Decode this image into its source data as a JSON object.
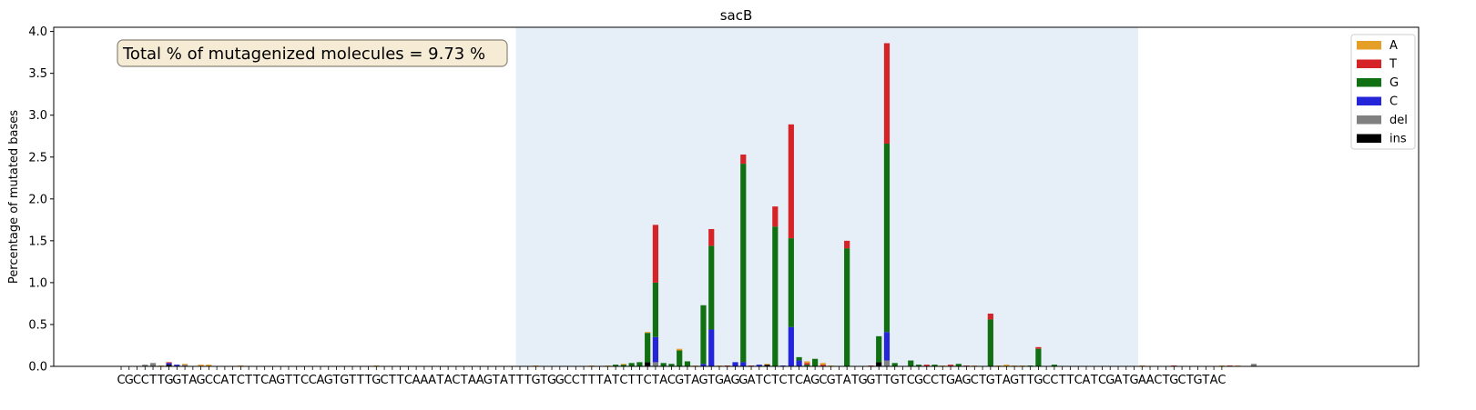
{
  "chart_data": {
    "type": "bar",
    "stacked": true,
    "title": "sacB",
    "ylabel": "Percentage of mutated bases",
    "xlabel": "",
    "ylim": [
      0,
      4.05
    ],
    "yticks": [
      "0.0",
      "0.5",
      "1.0",
      "1.5",
      "2.0",
      "2.5",
      "3.0",
      "3.5",
      "4.0"
    ],
    "sequence": "CGCCTTGGTAGCCATCTTCAGTTCCAGTGTTTGCTTCAAATACTAAGTATTTGTGGCCTTTATCTTCTACGTAGTGAGGATCTCTCAGCGTATGGTTGTCGCCTGAGCTGTAGTTGCCTTCATCGATGAACTGCTGTAC",
    "highlight_region": {
      "start_index": 50,
      "end_index": 128
    },
    "annotation": "Total % of mutagenized molecules = 9.73 %",
    "legend": [
      "A",
      "T",
      "G",
      "C",
      "del",
      "ins"
    ],
    "legend_position": "upper right",
    "colors": {
      "A": "#e69f26",
      "T": "#d62328",
      "G": "#117011",
      "C": "#2424d8",
      "del": "#808080",
      "ins": "#000000",
      "highlight": "#e6eff7"
    },
    "bars": [
      {
        "pos": 3,
        "del": 0.02
      },
      {
        "pos": 4,
        "del": 0.04
      },
      {
        "pos": 5,
        "A": 0.01
      },
      {
        "pos": 6,
        "ins": 0.02,
        "C": 0.02,
        "T": 0.01
      },
      {
        "pos": 7,
        "C": 0.02
      },
      {
        "pos": 8,
        "del": 0.02,
        "A": 0.01
      },
      {
        "pos": 10,
        "A": 0.02
      },
      {
        "pos": 11,
        "A": 0.02
      },
      {
        "pos": 15,
        "A": 0.01
      },
      {
        "pos": 32,
        "A": 0.01
      },
      {
        "pos": 52,
        "A": 0.01
      },
      {
        "pos": 59,
        "A": 0.01
      },
      {
        "pos": 61,
        "A": 0.01
      },
      {
        "pos": 62,
        "G": 0.02
      },
      {
        "pos": 63,
        "G": 0.02,
        "A": 0.01
      },
      {
        "pos": 64,
        "G": 0.04
      },
      {
        "pos": 65,
        "G": 0.05
      },
      {
        "pos": 66,
        "ins": 0.05,
        "G": 0.35,
        "A": 0.01
      },
      {
        "pos": 67,
        "del": 0.05,
        "C": 0.3,
        "G": 0.65,
        "T": 0.69
      },
      {
        "pos": 68,
        "G": 0.04
      },
      {
        "pos": 69,
        "G": 0.03
      },
      {
        "pos": 70,
        "G": 0.19,
        "A": 0.02
      },
      {
        "pos": 71,
        "G": 0.06
      },
      {
        "pos": 72,
        "A": 0.01
      },
      {
        "pos": 73,
        "C": 0.03,
        "G": 0.7
      },
      {
        "pos": 74,
        "C": 0.44,
        "G": 1.0,
        "T": 0.2
      },
      {
        "pos": 75,
        "A": 0.01
      },
      {
        "pos": 76,
        "T": 0.01
      },
      {
        "pos": 77,
        "C": 0.05
      },
      {
        "pos": 78,
        "C": 0.05,
        "G": 2.37,
        "T": 0.11
      },
      {
        "pos": 79,
        "T": 0.01
      },
      {
        "pos": 80,
        "C": 0.02
      },
      {
        "pos": 81,
        "ins": 0.02,
        "A": 0.01
      },
      {
        "pos": 82,
        "G": 1.67,
        "T": 0.24
      },
      {
        "pos": 83,
        "C": 0.01
      },
      {
        "pos": 84,
        "C": 0.47,
        "G": 1.06,
        "T": 1.36
      },
      {
        "pos": 85,
        "C": 0.07,
        "G": 0.04
      },
      {
        "pos": 86,
        "A": 0.02,
        "G": 0.02,
        "T": 0.02
      },
      {
        "pos": 87,
        "G": 0.09
      },
      {
        "pos": 88,
        "A": 0.02,
        "T": 0.02
      },
      {
        "pos": 89,
        "A": 0.01
      },
      {
        "pos": 91,
        "G": 1.41,
        "T": 0.09
      },
      {
        "pos": 94,
        "T": 0.01
      },
      {
        "pos": 95,
        "ins": 0.05,
        "G": 0.31
      },
      {
        "pos": 96,
        "del": 0.07,
        "C": 0.34,
        "G": 2.25,
        "T": 1.2
      },
      {
        "pos": 97,
        "G": 0.04
      },
      {
        "pos": 99,
        "G": 0.07
      },
      {
        "pos": 100,
        "G": 0.02
      },
      {
        "pos": 101,
        "T": 0.02
      },
      {
        "pos": 102,
        "G": 0.02
      },
      {
        "pos": 103,
        "A": 0.01
      },
      {
        "pos": 104,
        "T": 0.02
      },
      {
        "pos": 105,
        "G": 0.03
      },
      {
        "pos": 106,
        "T": 0.01
      },
      {
        "pos": 107,
        "A": 0.01
      },
      {
        "pos": 109,
        "G": 0.56,
        "T": 0.07
      },
      {
        "pos": 110,
        "A": 0.01
      },
      {
        "pos": 111,
        "A": 0.02
      },
      {
        "pos": 112,
        "A": 0.01
      },
      {
        "pos": 113,
        "A": 0.01
      },
      {
        "pos": 114,
        "G": 0.01
      },
      {
        "pos": 115,
        "G": 0.21,
        "T": 0.02
      },
      {
        "pos": 117,
        "G": 0.02
      },
      {
        "pos": 128,
        "A": 0.01
      },
      {
        "pos": 132,
        "T": 0.01
      },
      {
        "pos": 138,
        "A": 0.01
      },
      {
        "pos": 139,
        "T": 0.01
      },
      {
        "pos": 140,
        "A": 0.01
      },
      {
        "pos": 142,
        "del": 0.03
      }
    ]
  }
}
